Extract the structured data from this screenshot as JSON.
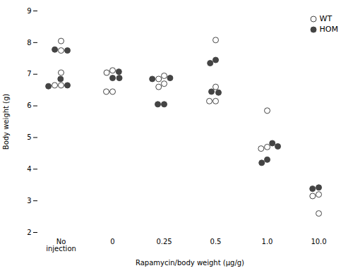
{
  "chart_data": {
    "type": "scatter",
    "xlabel": "Rapamycin/body weight (μg/g)",
    "ylabel": "Body weight (g)",
    "categories": [
      "No\ninjection",
      "0",
      "0.25",
      "0.5",
      "1.0",
      "10.0"
    ],
    "series": [
      {
        "name": "WT",
        "color": "#444444",
        "marker": "open_circle",
        "values": [
          [
            8.05,
            7.75,
            7.05,
            6.65,
            6.65
          ],
          [
            7.12,
            7.05,
            6.45,
            6.45
          ],
          [
            6.95,
            6.85,
            6.7,
            6.6
          ],
          [
            8.08,
            6.6,
            6.15,
            6.15
          ],
          [
            5.85,
            4.7,
            4.65
          ],
          [
            3.2,
            3.15,
            2.6
          ]
        ]
      },
      {
        "name": "HOM",
        "color": "#444444",
        "marker": "circle",
        "values": [
          [
            7.78,
            7.75,
            6.85,
            6.65,
            6.62
          ],
          [
            7.08,
            6.88,
            6.88
          ],
          [
            6.88,
            6.85,
            6.05,
            6.05
          ],
          [
            7.45,
            7.35,
            6.45,
            6.42
          ],
          [
            4.82,
            4.72,
            4.3,
            4.2
          ],
          [
            3.42,
            3.38
          ]
        ]
      }
    ],
    "ylim": [
      2,
      9
    ],
    "yticks": [
      2,
      3,
      4,
      5,
      6,
      7,
      8,
      9
    ],
    "grid": false,
    "legend": "upper right"
  }
}
